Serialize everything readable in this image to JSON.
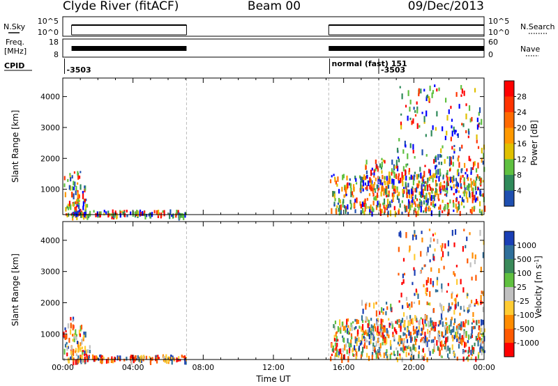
{
  "header": {
    "station": "Clyde River (fitACF)",
    "beam": "Beam 00",
    "date": "09/Dec/2013"
  },
  "strips": {
    "nsky_label": "N.Sky",
    "nsearch_label": "N.Search",
    "freq_label_line1": "Freq.",
    "freq_label_line2": "[MHz]",
    "nave_label": "Nave",
    "cpid_label": "CPID",
    "cpid_entries": [
      {
        "text": "-3503",
        "time_h": 0.1
      },
      {
        "text": "normal (fast) 151",
        "time_h": 15.2
      },
      {
        "text": "-3503",
        "time_h": 18.0
      }
    ],
    "noise_ticks_left": [
      "10^5",
      "10^0"
    ],
    "noise_ticks_right": [
      "10^5",
      "10^0"
    ],
    "freq_ticks": [
      "18",
      "8"
    ],
    "nave_ticks": [
      "60",
      "0"
    ],
    "operating_intervals_h": [
      [
        0.5,
        7.05
      ],
      [
        15.15,
        24.0
      ]
    ]
  },
  "chart_data": [
    {
      "type": "heatmap",
      "quantity": "Power",
      "ylabel": "Slant Range [km]",
      "ylim": [
        180,
        4600
      ],
      "yticks": [
        "1000",
        "2000",
        "3000",
        "4000"
      ],
      "xlim_h": [
        0,
        24
      ],
      "colorbar_label": "Power [dB]",
      "colorbar_ticks": [
        "28",
        "24",
        "20",
        "16",
        "12",
        "8",
        "4"
      ],
      "colorbar_colors": [
        "#ff0000",
        "#ff3300",
        "#ff6a00",
        "#ff9900",
        "#e0c000",
        "#5fc040",
        "#2f8a5a",
        "#1f4fb0",
        "#0000ff"
      ],
      "regions": [
        {
          "t": [
            0.0,
            1.3
          ],
          "r": [
            180,
            1650
          ],
          "level": 0.7
        },
        {
          "t": [
            0.2,
            1.5
          ],
          "r": [
            180,
            700
          ],
          "level": 0.45
        },
        {
          "t": [
            0.5,
            7.0
          ],
          "r": [
            180,
            350
          ],
          "level": 0.3
        },
        {
          "t": [
            15.2,
            24.0
          ],
          "r": [
            250,
            1500
          ],
          "level": 0.85
        },
        {
          "t": [
            17.0,
            24.0
          ],
          "r": [
            800,
            2100
          ],
          "level": 0.5
        },
        {
          "t": [
            19.0,
            24.0
          ],
          "r": [
            2000,
            4400
          ],
          "level": 0.4
        }
      ]
    },
    {
      "type": "heatmap",
      "quantity": "Velocity",
      "ylabel": "Slant Range [km]",
      "ylim": [
        180,
        4600
      ],
      "yticks": [
        "1000",
        "2000",
        "3000",
        "4000"
      ],
      "xlim_h": [
        0,
        24
      ],
      "xticks": [
        "00:00",
        "04:00",
        "08:00",
        "12:00",
        "16:00",
        "20:00",
        "00:00"
      ],
      "xlabel": "Time UT",
      "colorbar_label": "Velocity [m s^-1]",
      "colorbar_ticks": [
        "1000",
        "500",
        "100",
        "25",
        "-25",
        "-100",
        "-500",
        "-1000"
      ],
      "colorbar_colors": [
        "#1a3fb5",
        "#2f6f9a",
        "#3a8a5a",
        "#60c040",
        "#c0c0c0",
        "#ffcc33",
        "#ff8c00",
        "#ff5a00",
        "#ff0000"
      ],
      "regions": [
        {
          "t": [
            0.0,
            1.3
          ],
          "r": [
            180,
            1650
          ],
          "level": 0.7
        },
        {
          "t": [
            0.2,
            1.5
          ],
          "r": [
            180,
            700
          ],
          "level": 0.45
        },
        {
          "t": [
            0.5,
            7.0
          ],
          "r": [
            180,
            350
          ],
          "level": 0.3
        },
        {
          "t": [
            15.2,
            24.0
          ],
          "r": [
            250,
            1500
          ],
          "level": 0.85
        },
        {
          "t": [
            17.0,
            24.0
          ],
          "r": [
            800,
            2100
          ],
          "level": 0.5
        },
        {
          "t": [
            19.0,
            24.0
          ],
          "r": [
            2000,
            4400
          ],
          "level": 0.4
        }
      ]
    }
  ]
}
